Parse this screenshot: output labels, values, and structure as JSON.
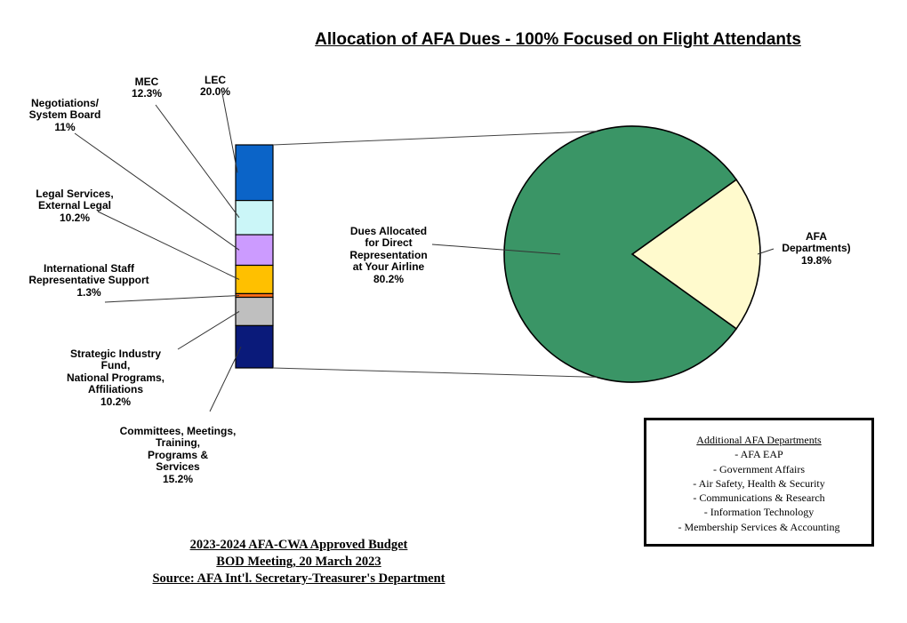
{
  "chart_data": {
    "type": "bar-of-pie",
    "title": "Allocation of AFA Dues - 100% Focused on Flight Attendants",
    "pie": {
      "slices": [
        {
          "label": "Dues Allocated\nfor Direct\nRepresentation\nat Your Airline",
          "value": 80.2,
          "display": "80.2%",
          "color": "#3a9566"
        },
        {
          "label": "AFA\nDepartments)",
          "value": 19.8,
          "display": "19.8%",
          "color": "#fffacd"
        }
      ]
    },
    "bar": {
      "segments": [
        {
          "label": "LEC",
          "value": 20.0,
          "display": "20.0%",
          "color": "#0b64c8"
        },
        {
          "label": "MEC",
          "value": 12.3,
          "display": "12.3%",
          "color": "#cbf6f8"
        },
        {
          "label": "Negotiations/\nSystem Board",
          "value": 11.0,
          "display": "11%",
          "color": "#cc9bff"
        },
        {
          "label": "Legal Services,\nExternal Legal",
          "value": 10.2,
          "display": "10.2%",
          "color": "#ffc000"
        },
        {
          "label": "International Staff\nRepresentative Support",
          "value": 1.3,
          "display": "1.3%",
          "color": "#ff6f1a"
        },
        {
          "label": "Strategic Industry\nFund,\nNational Programs,\nAffiliations",
          "value": 10.2,
          "display": "10.2%",
          "color": "#bfbfbf"
        },
        {
          "label": "Committees, Meetings,\nTraining,\nPrograms &\nServices",
          "value": 15.2,
          "display": "15.2%",
          "color": "#0a1a7a"
        }
      ]
    }
  },
  "departments_box": {
    "heading": "Additional AFA Departments",
    "items": [
      "- AFA EAP",
      "- Government Affairs",
      "- Air Safety, Health & Security",
      "- Communications & Research",
      "- Information Technology",
      "- Membership Services & Accounting"
    ]
  },
  "source_lines": [
    "2023-2024  AFA-CWA Approved Budget",
    "BOD Meeting, 20 March 2023",
    "Source: AFA Int'l. Secretary-Treasurer's Department"
  ]
}
